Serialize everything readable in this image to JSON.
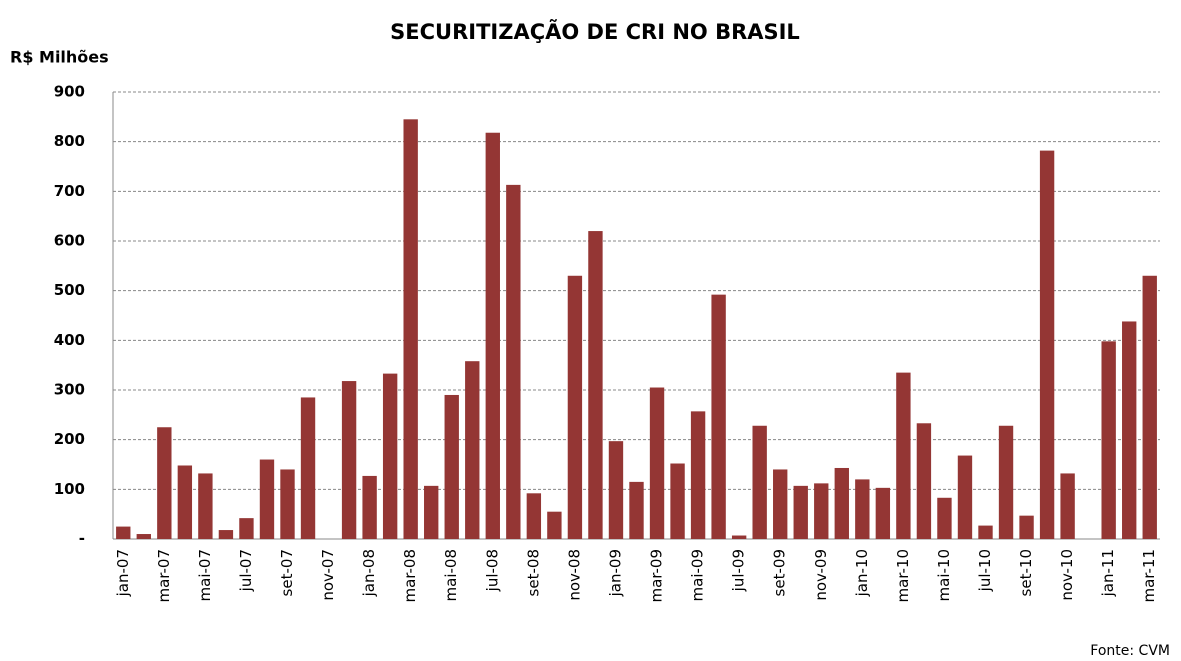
{
  "chart_data": {
    "type": "bar",
    "title": "SECURITIZAÇÃO DE CRI NO BRASIL",
    "y_label": "R$ Milhões",
    "source": "Fonte: CVM",
    "categories": [
      "jan-07",
      null,
      "mar-07",
      null,
      "mai-07",
      null,
      "jul-07",
      null,
      "set-07",
      null,
      "nov-07",
      null,
      "jan-08",
      null,
      "mar-08",
      null,
      "mai-08",
      null,
      "jul-08",
      null,
      "set-08",
      null,
      "nov-08",
      null,
      "jan-09",
      null,
      "mar-09",
      null,
      "mai-09",
      null,
      "jul-09",
      null,
      "set-09",
      null,
      "nov-09",
      null,
      "jan-10",
      null,
      "mar-10",
      null,
      "mai-10",
      null,
      "jul-10",
      null,
      "set-10",
      null,
      "nov-10",
      null,
      "jan-11",
      null,
      "mar-11"
    ],
    "values": [
      25,
      10,
      225,
      148,
      132,
      18,
      42,
      160,
      140,
      285,
      0,
      318,
      127,
      333,
      845,
      107,
      290,
      358,
      818,
      713,
      92,
      55,
      530,
      620,
      197,
      115,
      305,
      152,
      257,
      492,
      7,
      228,
      140,
      107,
      112,
      143,
      120,
      103,
      335,
      233,
      83,
      168,
      27,
      228,
      47,
      782,
      132,
      0,
      398,
      438,
      530
    ],
    "color": "#943634",
    "ylim": [
      0,
      900
    ],
    "yticks": [
      {
        "value": 0,
        "label": "-"
      },
      100,
      200,
      300,
      400,
      500,
      600,
      700,
      800,
      900
    ],
    "grid": true
  }
}
